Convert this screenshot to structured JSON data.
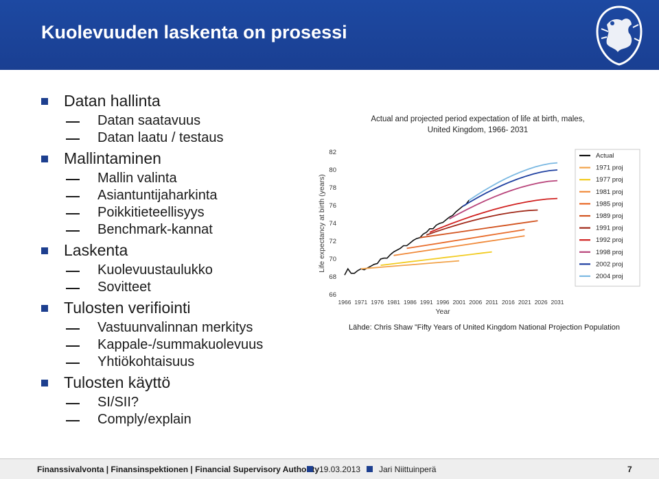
{
  "title": "Kuolevuuden laskenta on prosessi",
  "bullets": [
    {
      "label": "Datan hallinta",
      "subs": [
        "Datan saatavuus",
        "Datan laatu / testaus"
      ]
    },
    {
      "label": "Mallintaminen",
      "subs": [
        "Mallin valinta",
        "Asiantuntijaharkinta",
        "Poikkitieteellisyys",
        "Benchmark-kannat"
      ]
    },
    {
      "label": "Laskenta",
      "subs": [
        "Kuolevuustaulukko",
        "Sovitteet"
      ]
    },
    {
      "label": "Tulosten verifiointi",
      "subs": [
        "Vastuunvalinnan merkitys",
        "Kappale-/summakuolevuus",
        "Yhtiökohtaisuus"
      ]
    },
    {
      "label": "Tulosten käyttö",
      "subs": [
        "SI/SII?",
        "Comply/explain"
      ]
    }
  ],
  "source_note": "Lähde: Chris Shaw ”Fifty Years of United Kingdom National Projection Population",
  "chart_data": {
    "type": "line",
    "title": "Actual and projected period expectation of life at birth, males,",
    "subtitle": "United Kingdom, 1966- 2031",
    "xlabel": "Year",
    "ylabel": "Life expectancy at birth (years)",
    "xlim": [
      1966,
      2031
    ],
    "ylim": [
      66,
      82
    ],
    "xticks": [
      1966,
      1971,
      1976,
      1981,
      1986,
      1991,
      1996,
      2001,
      2006,
      2011,
      2016,
      2021,
      2026,
      2031
    ],
    "yticks": [
      66,
      68,
      70,
      72,
      74,
      76,
      78,
      80,
      82
    ],
    "legend_position": "right",
    "series": [
      {
        "name": "Actual",
        "color": "#111111",
        "x": [
          1966,
          1967,
          1968,
          1969,
          1970,
          1971,
          1972,
          1973,
          1974,
          1975,
          1976,
          1977,
          1978,
          1979,
          1980,
          1981,
          1982,
          1983,
          1984,
          1985,
          1986,
          1987,
          1988,
          1989,
          1990,
          1991,
          1992,
          1993,
          1994,
          1995,
          1996,
          1997,
          1998,
          1999,
          2000,
          2001,
          2002,
          2003,
          2004
        ],
        "y": [
          68.2,
          68.9,
          68.4,
          68.4,
          68.7,
          68.9,
          68.8,
          69.0,
          69.2,
          69.4,
          69.5,
          70.0,
          70.1,
          70.1,
          70.5,
          70.8,
          71.0,
          71.2,
          71.5,
          71.5,
          71.8,
          72.1,
          72.3,
          72.4,
          72.8,
          73.0,
          73.4,
          73.4,
          73.8,
          74.0,
          74.1,
          74.4,
          74.7,
          74.9,
          75.3,
          75.6,
          75.9,
          76.1,
          76.6
        ]
      },
      {
        "name": "1971 proj",
        "color": "#f2a34a",
        "x": [
          1971,
          2001
        ],
        "y": [
          68.9,
          69.8
        ]
      },
      {
        "name": "1977 proj",
        "color": "#f2cb20",
        "x": [
          1977,
          2011
        ],
        "y": [
          69.3,
          70.8
        ]
      },
      {
        "name": "1981 proj",
        "color": "#f08a3a",
        "x": [
          1981,
          2021
        ],
        "y": [
          70.4,
          72.6
        ]
      },
      {
        "name": "1985 proj",
        "color": "#e86a28",
        "x": [
          1985,
          2021
        ],
        "y": [
          71.2,
          73.3
        ]
      },
      {
        "name": "1989 proj",
        "color": "#d2521e",
        "x": [
          1989,
          2025
        ],
        "y": [
          72.4,
          74.3
        ]
      },
      {
        "name": "1991 proj",
        "color": "#a02818",
        "x": [
          1991,
          2025
        ],
        "y": [
          72.7,
          75.5
        ]
      },
      {
        "name": "1992 proj",
        "color": "#d0201f",
        "x": [
          1992,
          2031
        ],
        "y": [
          73.0,
          76.8
        ]
      },
      {
        "name": "1998 proj",
        "color": "#b8437a",
        "x": [
          1998,
          2031
        ],
        "y": [
          74.5,
          78.8
        ]
      },
      {
        "name": "2002 proj",
        "color": "#1e3fa0",
        "x": [
          2002,
          2031
        ],
        "y": [
          75.9,
          80.0
        ]
      },
      {
        "name": "2004 proj",
        "color": "#7ab8e2",
        "x": [
          2004,
          2031
        ],
        "y": [
          76.6,
          80.8
        ]
      }
    ]
  },
  "footer": {
    "org": "Finanssivalvonta | Finansinspektionen | Financial Supervisory Authority",
    "date": "19.03.2013",
    "author": "Jari Niittuinperä",
    "page": "7"
  }
}
